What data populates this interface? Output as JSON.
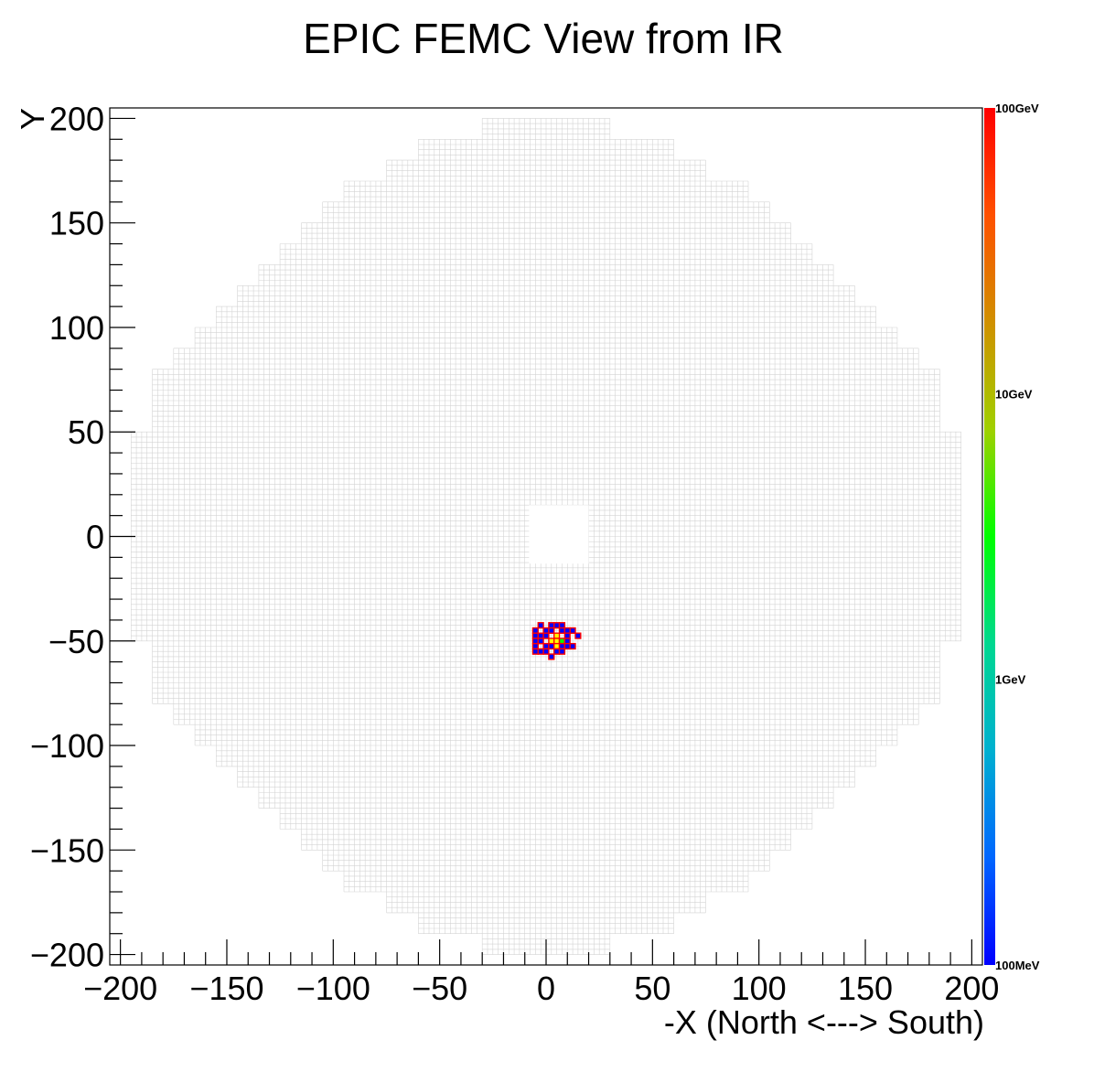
{
  "chart_data": {
    "type": "heatmap",
    "title": "EPIC FEMC View from IR",
    "xlabel": "-X (North <---> South)",
    "ylabel": "Y",
    "xlim": [
      -205,
      205
    ],
    "ylim": [
      -205,
      205
    ],
    "x_ticks": [
      -200,
      -150,
      -100,
      -50,
      0,
      50,
      100,
      150,
      200
    ],
    "y_ticks": [
      -200,
      -150,
      -100,
      -50,
      0,
      50,
      100,
      150,
      200
    ],
    "x_tick_labels": [
      "−200",
      "−150",
      "−100",
      "−50",
      "0",
      "50",
      "100",
      "150",
      "200"
    ],
    "y_tick_labels": [
      "−200",
      "−150",
      "−100",
      "−50",
      "0",
      "50",
      "100",
      "150",
      "200"
    ],
    "cell_size": 2.5,
    "detector_outline": {
      "description_free": true,
      "row_half_widths": [
        [
          195,
          30
        ],
        [
          185,
          60
        ],
        [
          175,
          75
        ],
        [
          165,
          95
        ],
        [
          155,
          105
        ],
        [
          145,
          115
        ],
        [
          135,
          125
        ],
        [
          125,
          135
        ],
        [
          115,
          145
        ],
        [
          105,
          155
        ],
        [
          95,
          165
        ],
        [
          85,
          175
        ],
        [
          75,
          185
        ],
        [
          65,
          185
        ],
        [
          55,
          185
        ],
        [
          45,
          195
        ],
        [
          35,
          195
        ],
        [
          25,
          195
        ],
        [
          15,
          195
        ],
        [
          5,
          195
        ],
        [
          -5,
          195
        ],
        [
          -15,
          195
        ],
        [
          -25,
          195
        ],
        [
          -35,
          195
        ],
        [
          -45,
          195
        ],
        [
          -55,
          185
        ],
        [
          -65,
          185
        ],
        [
          -75,
          185
        ],
        [
          -85,
          175
        ],
        [
          -95,
          165
        ],
        [
          -105,
          155
        ],
        [
          -115,
          145
        ],
        [
          -125,
          135
        ],
        [
          -135,
          125
        ],
        [
          -145,
          115
        ],
        [
          -155,
          105
        ],
        [
          -165,
          95
        ],
        [
          -175,
          75
        ],
        [
          -185,
          60
        ],
        [
          -195,
          30
        ]
      ],
      "beam_hole": {
        "x": [
          -8,
          20
        ],
        "y": [
          -13,
          15
        ]
      }
    },
    "hits": [
      {
        "x": -2.5,
        "y": -42.5,
        "level": "low"
      },
      {
        "x": 2.5,
        "y": -42.5,
        "level": "low"
      },
      {
        "x": 5.0,
        "y": -42.5,
        "level": "low"
      },
      {
        "x": 7.5,
        "y": -42.5,
        "level": "low"
      },
      {
        "x": 12.5,
        "y": -45.0,
        "level": "low"
      },
      {
        "x": -5.0,
        "y": -45.0,
        "level": "low"
      },
      {
        "x": 0.0,
        "y": -45.0,
        "level": "low"
      },
      {
        "x": 2.5,
        "y": -45.0,
        "level": "low"
      },
      {
        "x": 7.5,
        "y": -45.0,
        "level": "low"
      },
      {
        "x": 10.0,
        "y": -45.0,
        "level": "low"
      },
      {
        "x": -5.0,
        "y": -47.5,
        "level": "low"
      },
      {
        "x": -2.5,
        "y": -47.5,
        "level": "low"
      },
      {
        "x": 0.0,
        "y": -47.5,
        "level": "low"
      },
      {
        "x": 5.0,
        "y": -47.5,
        "level": "mid"
      },
      {
        "x": 10.0,
        "y": -47.5,
        "level": "low"
      },
      {
        "x": 15.0,
        "y": -47.5,
        "level": "low"
      },
      {
        "x": -5.0,
        "y": -50.0,
        "level": "low"
      },
      {
        "x": -2.5,
        "y": -50.0,
        "level": "low"
      },
      {
        "x": 2.5,
        "y": -50.0,
        "level": "mid"
      },
      {
        "x": 5.0,
        "y": -50.0,
        "level": "mid"
      },
      {
        "x": 7.5,
        "y": -50.0,
        "level": "high"
      },
      {
        "x": 10.0,
        "y": -50.0,
        "level": "low"
      },
      {
        "x": -5.0,
        "y": -52.5,
        "level": "low"
      },
      {
        "x": 0.0,
        "y": -52.5,
        "level": "low"
      },
      {
        "x": 2.5,
        "y": -52.5,
        "level": "low"
      },
      {
        "x": 5.0,
        "y": -52.5,
        "level": "mid"
      },
      {
        "x": 7.5,
        "y": -52.5,
        "level": "low"
      },
      {
        "x": 10.0,
        "y": -52.5,
        "level": "low"
      },
      {
        "x": 12.5,
        "y": -52.5,
        "level": "low"
      },
      {
        "x": -5.0,
        "y": -55.0,
        "level": "low"
      },
      {
        "x": -2.5,
        "y": -55.0,
        "level": "low"
      },
      {
        "x": 0.0,
        "y": -55.0,
        "level": "low"
      },
      {
        "x": 5.0,
        "y": -55.0,
        "level": "low"
      },
      {
        "x": 7.5,
        "y": -55.0,
        "level": "low"
      },
      {
        "x": 2.5,
        "y": -57.5,
        "level": "low"
      }
    ],
    "palette": {
      "labels": [
        "100GeV",
        "10GeV",
        "1GeV",
        "100MeV"
      ],
      "scale": "log",
      "colors": [
        "#0000ff",
        "#0066ff",
        "#00b0d0",
        "#00d890",
        "#00ff00",
        "#a0d000",
        "#d09000",
        "#ff5000",
        "#ff0000"
      ]
    },
    "grid": false
  }
}
